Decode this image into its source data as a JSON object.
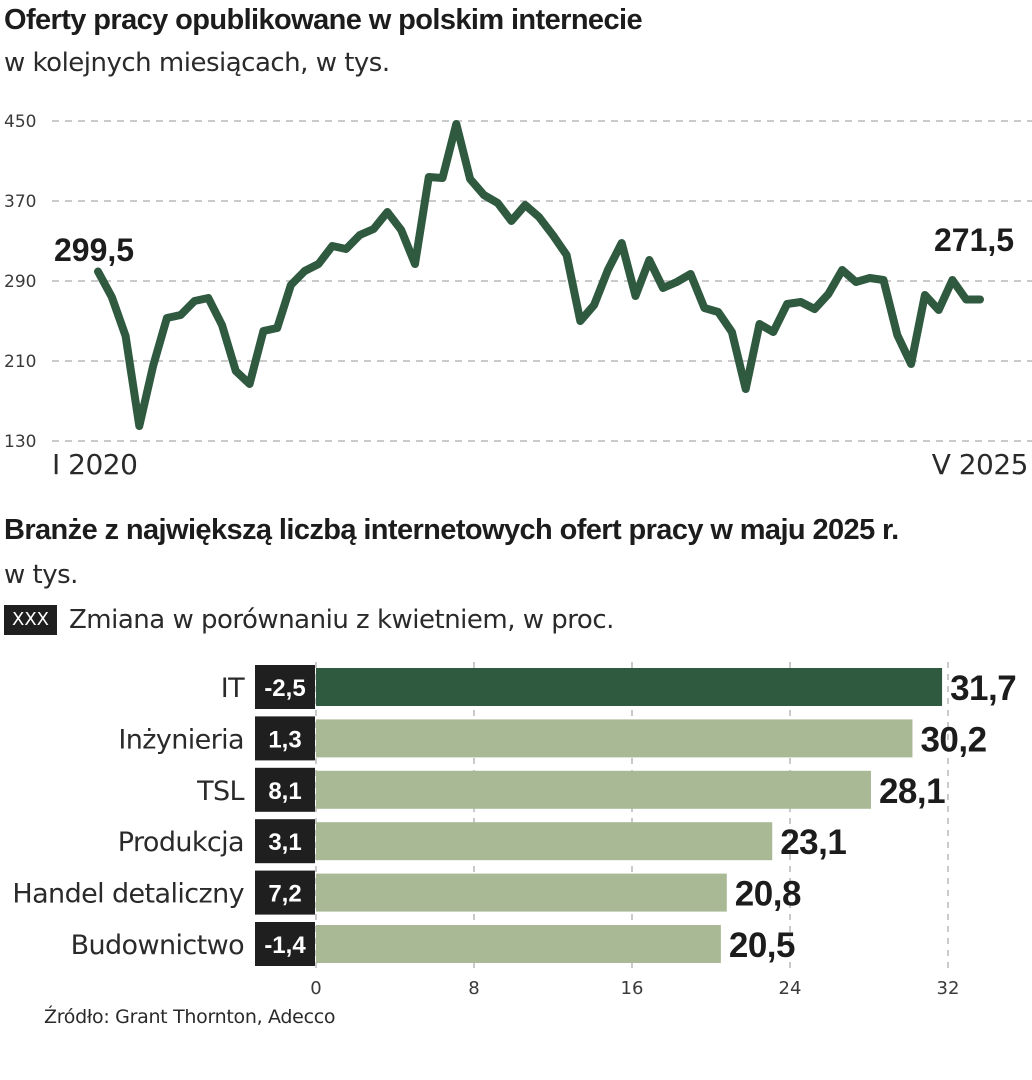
{
  "chart_data": [
    {
      "type": "line",
      "title": "Oferty  pracy opublikowane w  polskim internecie",
      "subtitle": "w kolejnych miesiącach, w tys.",
      "x_start_label": "I 2020",
      "x_end_label": "V 2025",
      "y_ticks": [
        "450",
        "370",
        "290",
        "210",
        "130"
      ],
      "y_tick_values": [
        450,
        370,
        290,
        210,
        130
      ],
      "ylim": [
        130,
        450
      ],
      "first_label": "299,5",
      "last_label": "271,5",
      "line_color": "#2f5a40",
      "values": [
        299.5,
        274,
        235,
        145,
        205,
        253,
        256,
        270,
        273,
        246,
        200,
        187,
        240,
        243,
        286,
        300,
        307,
        325,
        322,
        336,
        342,
        359,
        341,
        307,
        394,
        393,
        447,
        392,
        376,
        368,
        350,
        366,
        354,
        336,
        316,
        250,
        266,
        301,
        328,
        275,
        311,
        283,
        289,
        297,
        263,
        259,
        239,
        182,
        247,
        239,
        267,
        269,
        262,
        277,
        301,
        289,
        293,
        291,
        236,
        207,
        276,
        261,
        291,
        271.5,
        271.5
      ]
    },
    {
      "type": "bar",
      "orientation": "horizontal",
      "title": "Branże z największą liczbą internetowych ofert pracy w maju 2025 r.",
      "subtitle": "w tys.",
      "legend_swatch": "XXX",
      "legend_text": "Zmiana w porównaniu z kwietniem, w proc.",
      "categories": [
        "IT",
        "Inżynieria",
        "TSL",
        "Produkcja",
        "Handel detaliczny",
        "Budownictwo"
      ],
      "values": [
        31.7,
        30.2,
        28.1,
        23.1,
        20.8,
        20.5
      ],
      "value_labels": [
        "31,7",
        "30,2",
        "28,1",
        "23,1",
        "20,8",
        "20,5"
      ],
      "change_labels": [
        "-2,5",
        "1,3",
        "8,1",
        "3,1",
        "7,2",
        "-1,4"
      ],
      "x_ticks": [
        0,
        8,
        16,
        24,
        32
      ],
      "xlim": [
        0,
        32
      ],
      "highlight_color": "#2f5a40",
      "bar_color": "#a9b996",
      "change_box_color": "#1f1f1f"
    }
  ],
  "source": "Źródło: Grant Thornton, Adecco"
}
